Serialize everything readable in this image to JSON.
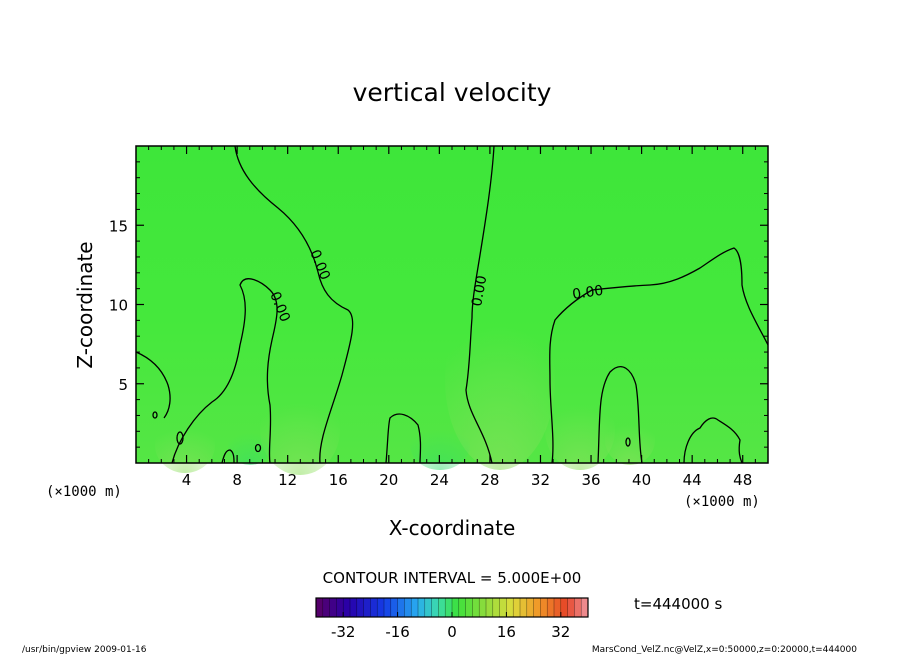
{
  "chart_data": {
    "type": "heatmap",
    "title": "vertical velocity",
    "xlabel": "X-coordinate",
    "ylabel": "Z-coordinate",
    "x_unit_left": "(×1000 m)",
    "x_unit_right": "(×1000 m)",
    "xlim": [
      0,
      50
    ],
    "ylim": [
      0,
      20
    ],
    "xticks": [
      4,
      8,
      12,
      16,
      20,
      24,
      28,
      32,
      36,
      40,
      44,
      48
    ],
    "yticks": [
      5,
      10,
      15
    ],
    "contour_interval_text": "CONTOUR INTERVAL = 5.000E+00",
    "contour_labels": [
      "0.00",
      "0.00",
      "0.00",
      "0.00"
    ],
    "colorbar": {
      "min": -40,
      "max": 40,
      "ticks": [
        -32,
        -16,
        0,
        16,
        32
      ]
    },
    "time_text": "t=444000 s",
    "grid": false
  },
  "footer": {
    "left": "/usr/bin/gpview   2009-01-16",
    "right": "MarsCond_VelZ.nc@VelZ,x=0:50000,z=0:20000,t=444000"
  }
}
